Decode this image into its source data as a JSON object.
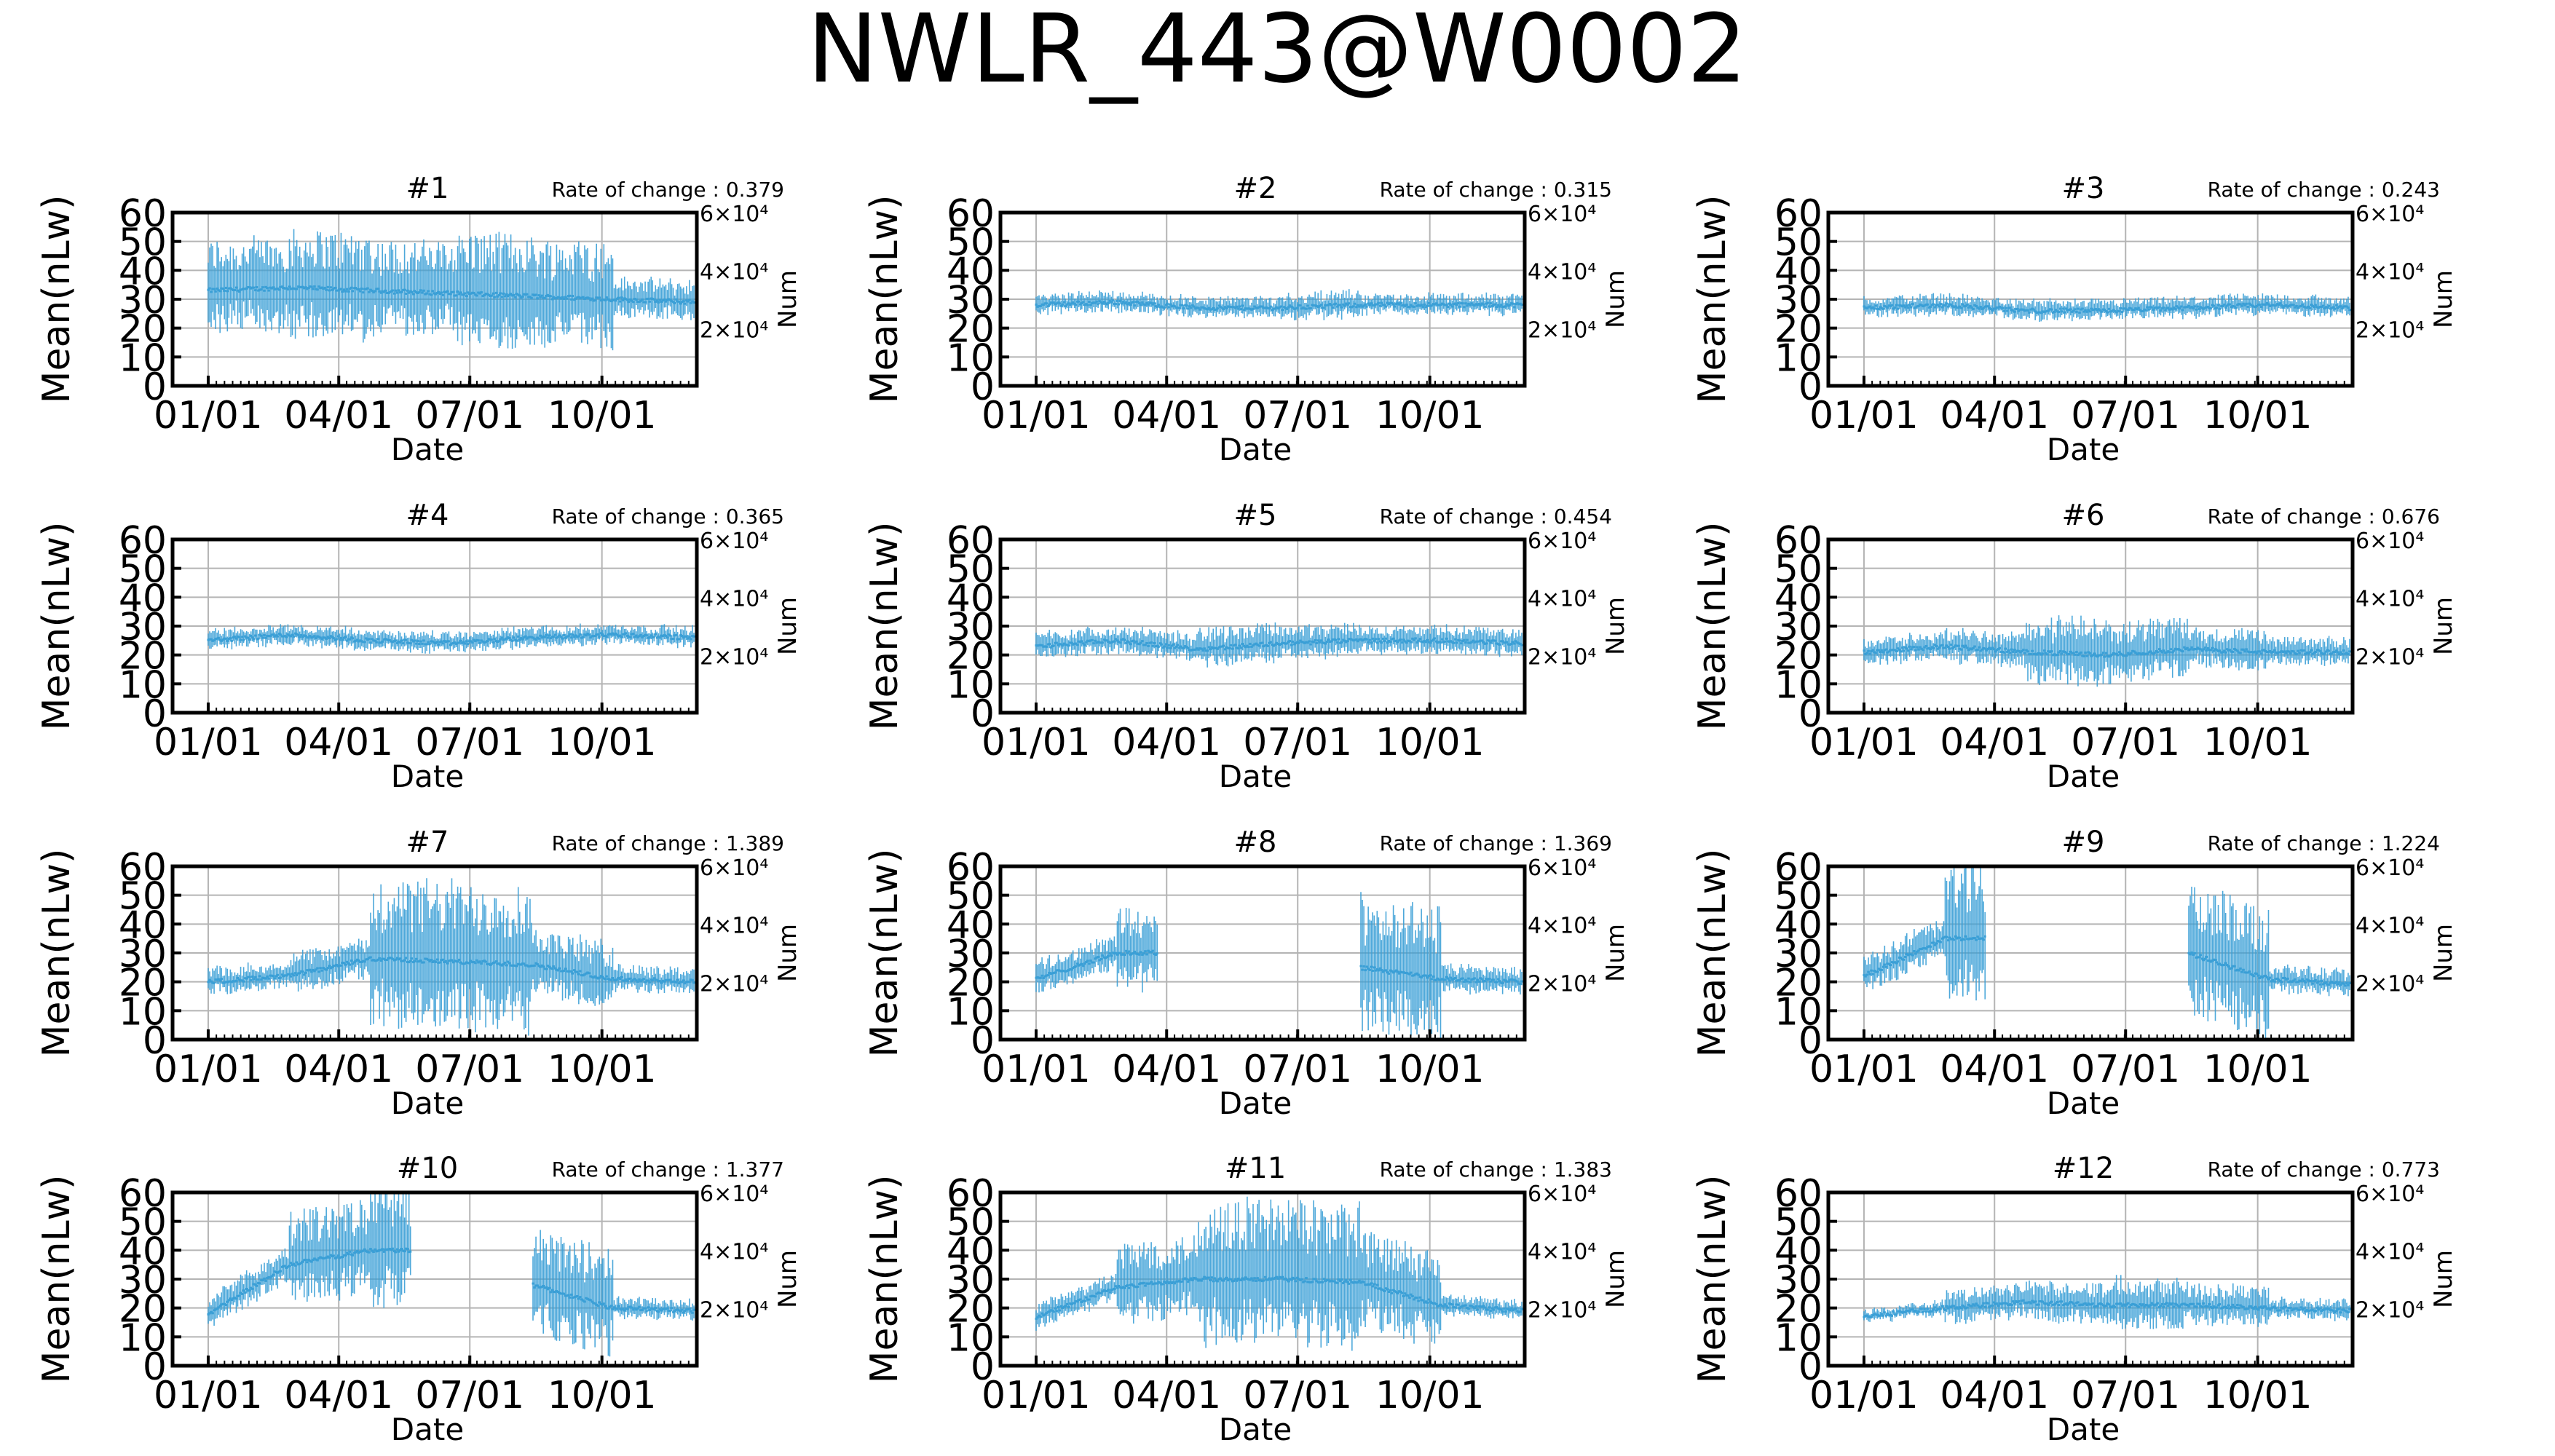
{
  "figure": {
    "title": "NWLR_443@W0002",
    "colors": {
      "series": "#3a9fd6",
      "grid": "#b4b4b4",
      "axis": "#000000",
      "text": "#000000"
    }
  },
  "chart_data": [
    {
      "type": "line",
      "panel": "#1",
      "title": "#1",
      "annotation": "Rate of change : 0.379",
      "xlabel": "Date",
      "ylabel": "Mean(nLw)",
      "y2label": "Num",
      "x_ticks": [
        "01/01",
        "04/01",
        "07/01",
        "10/01"
      ],
      "ylim": [
        0,
        60
      ],
      "yticks": [
        0,
        10,
        20,
        30,
        40,
        50,
        60
      ],
      "y2ticks": [
        "2×10⁴",
        "4×10⁴",
        "6×10⁴"
      ],
      "grid": true,
      "series": [
        {
          "values": [
            33,
            34,
            33,
            32,
            31,
            30,
            29
          ]
        }
      ]
    },
    {
      "type": "line",
      "panel": "#2",
      "title": "#2",
      "annotation": "Rate of change : 0.315",
      "xlabel": "Date",
      "ylabel": "Mean(nLw)",
      "y2label": "Num",
      "x_ticks": [
        "01/01",
        "04/01",
        "07/01",
        "10/01"
      ],
      "ylim": [
        0,
        60
      ],
      "yticks": [
        0,
        10,
        20,
        30,
        40,
        50,
        60
      ],
      "y2ticks": [
        "2×10⁴",
        "4×10⁴",
        "6×10⁴"
      ],
      "grid": true,
      "series": [
        {
          "values": [
            28,
            29,
            27,
            27,
            28,
            28,
            28
          ]
        }
      ]
    },
    {
      "type": "line",
      "panel": "#3",
      "title": "#3",
      "annotation": "Rate of change : 0.243",
      "xlabel": "Date",
      "ylabel": "Mean(nLw)",
      "y2label": "Num",
      "x_ticks": [
        "01/01",
        "04/01",
        "07/01",
        "10/01"
      ],
      "ylim": [
        0,
        60
      ],
      "yticks": [
        0,
        10,
        20,
        30,
        40,
        50,
        60
      ],
      "y2ticks": [
        "2×10⁴",
        "4×10⁴",
        "6×10⁴"
      ],
      "grid": true,
      "series": [
        {
          "values": [
            27,
            28,
            26,
            26,
            27,
            28,
            27
          ]
        }
      ]
    },
    {
      "type": "line",
      "panel": "#4",
      "title": "#4",
      "annotation": "Rate of change : 0.365",
      "xlabel": "Date",
      "ylabel": "Mean(nLw)",
      "y2label": "Num",
      "x_ticks": [
        "01/01",
        "04/01",
        "07/01",
        "10/01"
      ],
      "ylim": [
        0,
        60
      ],
      "yticks": [
        0,
        10,
        20,
        30,
        40,
        50,
        60
      ],
      "y2ticks": [
        "2×10⁴",
        "4×10⁴",
        "6×10⁴"
      ],
      "grid": true,
      "series": [
        {
          "values": [
            25,
            27,
            25,
            24,
            26,
            27,
            26
          ]
        }
      ]
    },
    {
      "type": "line",
      "panel": "#5",
      "title": "#5",
      "annotation": "Rate of change : 0.454",
      "xlabel": "Date",
      "ylabel": "Mean(nLw)",
      "y2label": "Num",
      "x_ticks": [
        "01/01",
        "04/01",
        "07/01",
        "10/01"
      ],
      "ylim": [
        0,
        60
      ],
      "yticks": [
        0,
        10,
        20,
        30,
        40,
        50,
        60
      ],
      "y2ticks": [
        "2×10⁴",
        "4×10⁴",
        "6×10⁴"
      ],
      "grid": true,
      "series": [
        {
          "values": [
            23,
            25,
            22,
            24,
            25,
            25,
            24
          ]
        }
      ]
    },
    {
      "type": "line",
      "panel": "#6",
      "title": "#6",
      "annotation": "Rate of change : 0.676",
      "xlabel": "Date",
      "ylabel": "Mean(nLw)",
      "y2label": "Num",
      "x_ticks": [
        "01/01",
        "04/01",
        "07/01",
        "10/01"
      ],
      "ylim": [
        0,
        60
      ],
      "yticks": [
        0,
        10,
        20,
        30,
        40,
        50,
        60
      ],
      "y2ticks": [
        "2×10⁴",
        "4×10⁴",
        "6×10⁴"
      ],
      "grid": true,
      "series": [
        {
          "values": [
            21,
            23,
            21,
            20,
            22,
            21,
            21
          ]
        }
      ]
    },
    {
      "type": "line",
      "panel": "#7",
      "title": "#7",
      "annotation": "Rate of change : 1.389",
      "xlabel": "Date",
      "ylabel": "Mean(nLw)",
      "y2label": "Num",
      "x_ticks": [
        "01/01",
        "04/01",
        "07/01",
        "10/01"
      ],
      "ylim": [
        0,
        60
      ],
      "yticks": [
        0,
        10,
        20,
        30,
        40,
        50,
        60
      ],
      "y2ticks": [
        "2×10⁴",
        "4×10⁴",
        "6×10⁴"
      ],
      "grid": true,
      "series": [
        {
          "values": [
            20,
            22,
            28,
            27,
            26,
            21,
            20
          ]
        }
      ]
    },
    {
      "type": "line",
      "panel": "#8",
      "title": "#8",
      "annotation": "Rate of change : 1.369",
      "xlabel": "Date",
      "ylabel": "Mean(nLw)",
      "y2label": "Num",
      "x_ticks": [
        "01/01",
        "04/01",
        "07/01",
        "10/01"
      ],
      "ylim": [
        0,
        60
      ],
      "yticks": [
        0,
        10,
        20,
        30,
        40,
        50,
        60
      ],
      "y2ticks": [
        "2×10⁴",
        "4×10⁴",
        "6×10⁴"
      ],
      "grid": true,
      "series": [
        {
          "values": [
            21,
            30,
            null,
            null,
            25,
            21,
            20
          ]
        }
      ]
    },
    {
      "type": "line",
      "panel": "#9",
      "title": "#9",
      "annotation": "Rate of change : 1.224",
      "xlabel": "Date",
      "ylabel": "Mean(nLw)",
      "y2label": "Num",
      "x_ticks": [
        "01/01",
        "04/01",
        "07/01",
        "10/01"
      ],
      "ylim": [
        0,
        60
      ],
      "yticks": [
        0,
        10,
        20,
        30,
        40,
        50,
        60
      ],
      "y2ticks": [
        "2×10⁴",
        "4×10⁴",
        "6×10⁴"
      ],
      "grid": true,
      "series": [
        {
          "values": [
            22,
            35,
            null,
            null,
            30,
            21,
            19
          ]
        }
      ]
    },
    {
      "type": "line",
      "panel": "#10",
      "title": "#10",
      "annotation": "Rate of change : 1.377",
      "xlabel": "Date",
      "ylabel": "Mean(nLw)",
      "y2label": "Num",
      "x_ticks": [
        "01/01",
        "04/01",
        "07/01",
        "10/01"
      ],
      "ylim": [
        0,
        60
      ],
      "yticks": [
        0,
        10,
        20,
        30,
        40,
        50,
        60
      ],
      "y2ticks": [
        "2×10⁴",
        "4×10⁴",
        "6×10⁴"
      ],
      "grid": true,
      "series": [
        {
          "values": [
            18,
            35,
            40,
            null,
            28,
            20,
            19
          ]
        }
      ]
    },
    {
      "type": "line",
      "panel": "#11",
      "title": "#11",
      "annotation": "Rate of change : 1.383",
      "xlabel": "Date",
      "ylabel": "Mean(nLw)",
      "y2label": "Num",
      "x_ticks": [
        "01/01",
        "04/01",
        "07/01",
        "10/01"
      ],
      "ylim": [
        0,
        60
      ],
      "yticks": [
        0,
        10,
        20,
        30,
        40,
        50,
        60
      ],
      "y2ticks": [
        "2×10⁴",
        "4×10⁴",
        "6×10⁴"
      ],
      "grid": true,
      "series": [
        {
          "values": [
            17,
            27,
            30,
            30,
            29,
            21,
            19
          ]
        }
      ]
    },
    {
      "type": "line",
      "panel": "#12",
      "title": "#12",
      "annotation": "Rate of change : 0.773",
      "xlabel": "Date",
      "ylabel": "Mean(nLw)",
      "y2label": "Num",
      "x_ticks": [
        "01/01",
        "04/01",
        "07/01",
        "10/01"
      ],
      "ylim": [
        0,
        60
      ],
      "yticks": [
        0,
        10,
        20,
        30,
        40,
        50,
        60
      ],
      "y2ticks": [
        "2×10⁴",
        "4×10⁴",
        "6×10⁴"
      ],
      "grid": true,
      "series": [
        {
          "values": [
            17,
            20,
            22,
            21,
            21,
            20,
            19
          ]
        }
      ]
    }
  ]
}
